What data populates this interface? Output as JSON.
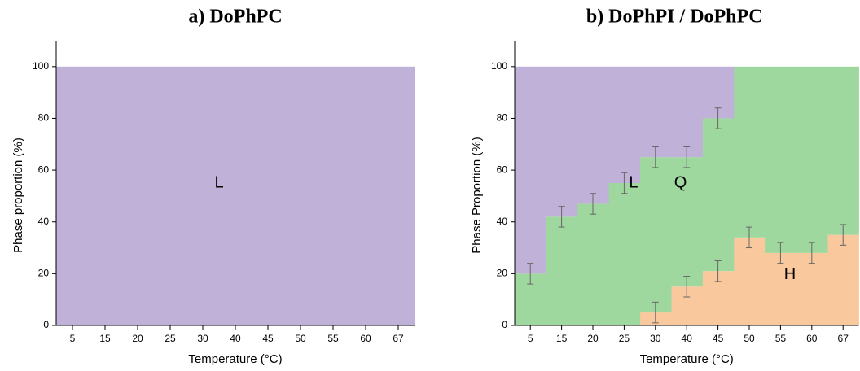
{
  "chart_data": [
    {
      "type": "step-area",
      "title": "a) DoPhPC",
      "xlabel": "Temperature (°C)",
      "ylabel": "Phase proportion (%)",
      "categories": [
        "5",
        "15",
        "20",
        "25",
        "30",
        "40",
        "45",
        "50",
        "55",
        "60",
        "67"
      ],
      "series": [
        {
          "name": "L",
          "color": "#c0b1d8",
          "values": [
            100,
            100,
            100,
            100,
            100,
            100,
            100,
            100,
            100,
            100,
            100
          ]
        }
      ],
      "ylim": [
        0,
        110
      ],
      "yticks": [
        0,
        20,
        40,
        60,
        80,
        100
      ]
    },
    {
      "type": "step-area",
      "title": "b) DoPhPI / DoPhPC",
      "xlabel": "Temperature (°C)",
      "ylabel": "Phase Proportion (%)",
      "categories": [
        "5",
        "15",
        "20",
        "25",
        "30",
        "40",
        "45",
        "50",
        "55",
        "60",
        "67"
      ],
      "series": [
        {
          "name": "H",
          "color": "#f9c89c",
          "values": [
            0,
            0,
            0,
            0,
            5,
            15,
            21,
            34,
            28,
            28,
            35
          ],
          "errors": [
            null,
            null,
            null,
            null,
            4,
            4,
            4,
            4,
            4,
            4,
            4
          ]
        },
        {
          "name": "Q",
          "color": "#9fd89f",
          "values": [
            20,
            42,
            47,
            55,
            60,
            50,
            59,
            66,
            72,
            72,
            65
          ],
          "errors": [
            4,
            4,
            4,
            4,
            4,
            4,
            4,
            null,
            null,
            null,
            null
          ]
        },
        {
          "name": "L",
          "color": "#c0b1d8",
          "values": [
            80,
            58,
            53,
            45,
            35,
            35,
            20,
            0,
            0,
            0,
            0
          ]
        }
      ],
      "ylim": [
        0,
        110
      ],
      "yticks": [
        0,
        20,
        40,
        60,
        80,
        100
      ]
    }
  ]
}
